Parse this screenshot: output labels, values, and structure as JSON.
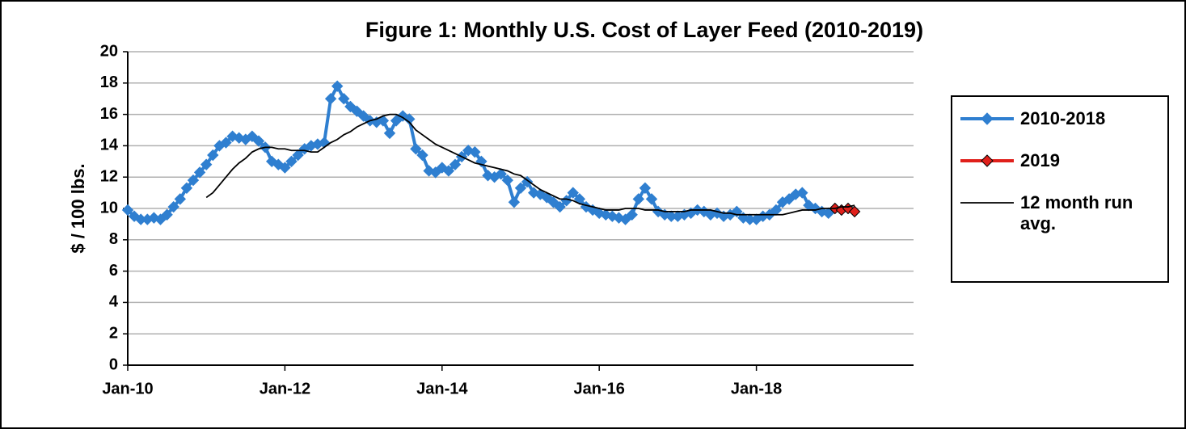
{
  "chart_data": {
    "type": "line",
    "title": "Figure 1: Monthly U.S. Cost of Layer Feed  (2010-2019)",
    "y_label": "$ / 100 lbs.",
    "categories": [
      "Jan-10",
      null,
      null,
      null,
      null,
      null,
      null,
      null,
      null,
      null,
      null,
      null,
      null,
      null,
      null,
      null,
      null,
      null,
      null,
      null,
      null,
      null,
      null,
      null,
      "Jan-12",
      null,
      null,
      null,
      null,
      null,
      null,
      null,
      null,
      null,
      null,
      null,
      null,
      null,
      null,
      null,
      null,
      null,
      null,
      null,
      null,
      null,
      null,
      null,
      "Jan-14",
      null,
      null,
      null,
      null,
      null,
      null,
      null,
      null,
      null,
      null,
      null,
      null,
      null,
      null,
      null,
      null,
      null,
      null,
      null,
      null,
      null,
      null,
      null,
      "Jan-16",
      null,
      null,
      null,
      null,
      null,
      null,
      null,
      null,
      null,
      null,
      null,
      null,
      null,
      null,
      null,
      null,
      null,
      null,
      null,
      null,
      null,
      null,
      null,
      "Jan-18",
      null,
      null,
      null,
      null,
      null,
      null,
      null,
      null,
      null,
      null,
      null,
      null,
      null,
      null,
      null,
      null,
      null,
      null,
      null,
      null,
      null,
      null,
      null
    ],
    "series": [
      {
        "name": "2010-2018",
        "color": "#2f7fd0",
        "marker": "diamond",
        "values": [
          9.9,
          9.5,
          9.3,
          9.3,
          9.4,
          9.3,
          9.6,
          10.1,
          10.6,
          11.3,
          11.8,
          12.3,
          12.8,
          13.4,
          14.0,
          14.2,
          14.6,
          14.5,
          14.4,
          14.6,
          14.3,
          13.9,
          13.0,
          12.8,
          12.6,
          13.0,
          13.4,
          13.8,
          14.0,
          14.1,
          14.2,
          17.0,
          17.8,
          17.0,
          16.5,
          16.2,
          15.9,
          15.6,
          15.5,
          15.6,
          14.8,
          15.6,
          15.9,
          15.7,
          13.8,
          13.4,
          12.4,
          12.3,
          12.6,
          12.4,
          12.8,
          13.3,
          13.7,
          13.6,
          13.0,
          12.1,
          12.0,
          12.2,
          11.8,
          10.4,
          11.3,
          11.7,
          11.0,
          10.9,
          10.7,
          10.4,
          10.1,
          10.5,
          11.0,
          10.6,
          10.1,
          9.9,
          9.7,
          9.6,
          9.5,
          9.4,
          9.3,
          9.6,
          10.6,
          11.3,
          10.6,
          9.8,
          9.6,
          9.5,
          9.5,
          9.6,
          9.7,
          9.9,
          9.8,
          9.6,
          9.7,
          9.5,
          9.6,
          9.8,
          9.4,
          9.3,
          9.3,
          9.5,
          9.6,
          9.9,
          10.4,
          10.6,
          10.9,
          11.0,
          10.2,
          10.0,
          9.8,
          9.7,
          null,
          null,
          null,
          null,
          null,
          null,
          null,
          null,
          null,
          null,
          null,
          null
        ]
      },
      {
        "name": "2019",
        "color": "#e0201b",
        "marker": "diamond",
        "values": [
          null,
          null,
          null,
          null,
          null,
          null,
          null,
          null,
          null,
          null,
          null,
          null,
          null,
          null,
          null,
          null,
          null,
          null,
          null,
          null,
          null,
          null,
          null,
          null,
          null,
          null,
          null,
          null,
          null,
          null,
          null,
          null,
          null,
          null,
          null,
          null,
          null,
          null,
          null,
          null,
          null,
          null,
          null,
          null,
          null,
          null,
          null,
          null,
          null,
          null,
          null,
          null,
          null,
          null,
          null,
          null,
          null,
          null,
          null,
          null,
          null,
          null,
          null,
          null,
          null,
          null,
          null,
          null,
          null,
          null,
          null,
          null,
          null,
          null,
          null,
          null,
          null,
          null,
          null,
          null,
          null,
          null,
          null,
          null,
          null,
          null,
          null,
          null,
          null,
          null,
          null,
          null,
          null,
          null,
          null,
          null,
          null,
          null,
          null,
          null,
          null,
          null,
          null,
          null,
          null,
          null,
          null,
          null,
          10.0,
          9.9,
          10.0,
          9.8,
          null,
          null,
          null,
          null,
          null,
          null,
          null,
          null
        ]
      },
      {
        "name": "12 month run avg.",
        "color": "#000000",
        "values": [
          null,
          null,
          null,
          null,
          null,
          null,
          null,
          null,
          null,
          null,
          null,
          null,
          10.7,
          11.0,
          11.5,
          12.0,
          12.5,
          12.9,
          13.2,
          13.6,
          13.8,
          13.9,
          13.9,
          13.8,
          13.8,
          13.7,
          13.7,
          13.7,
          13.6,
          13.6,
          13.9,
          14.2,
          14.4,
          14.7,
          14.9,
          15.2,
          15.4,
          15.6,
          15.7,
          15.9,
          16.0,
          16.0,
          15.8,
          15.5,
          15.0,
          14.7,
          14.4,
          14.1,
          13.9,
          13.7,
          13.5,
          13.3,
          13.1,
          12.9,
          12.8,
          12.7,
          12.6,
          12.5,
          12.4,
          12.2,
          12.1,
          11.8,
          11.5,
          11.2,
          11.0,
          10.8,
          10.6,
          10.6,
          10.5,
          10.3,
          10.2,
          10.1,
          10.0,
          9.9,
          9.9,
          9.9,
          10.0,
          10.0,
          10.0,
          9.9,
          9.9,
          9.9,
          9.8,
          9.8,
          9.8,
          9.8,
          9.9,
          9.9,
          9.9,
          9.9,
          9.8,
          9.7,
          9.7,
          9.6,
          9.6,
          9.6,
          9.6,
          9.6,
          9.6,
          9.6,
          9.6,
          9.7,
          9.8,
          9.9,
          9.9,
          9.9,
          10.0,
          10.0,
          10.0,
          10.1,
          10.1,
          10.2,
          null,
          null,
          null,
          null,
          null,
          null,
          null,
          null
        ]
      }
    ],
    "ylim": [
      0,
      20
    ],
    "yticks": [
      0,
      2,
      4,
      6,
      8,
      10,
      12,
      14,
      16,
      18,
      20
    ],
    "grid": true,
    "legend": "right"
  }
}
